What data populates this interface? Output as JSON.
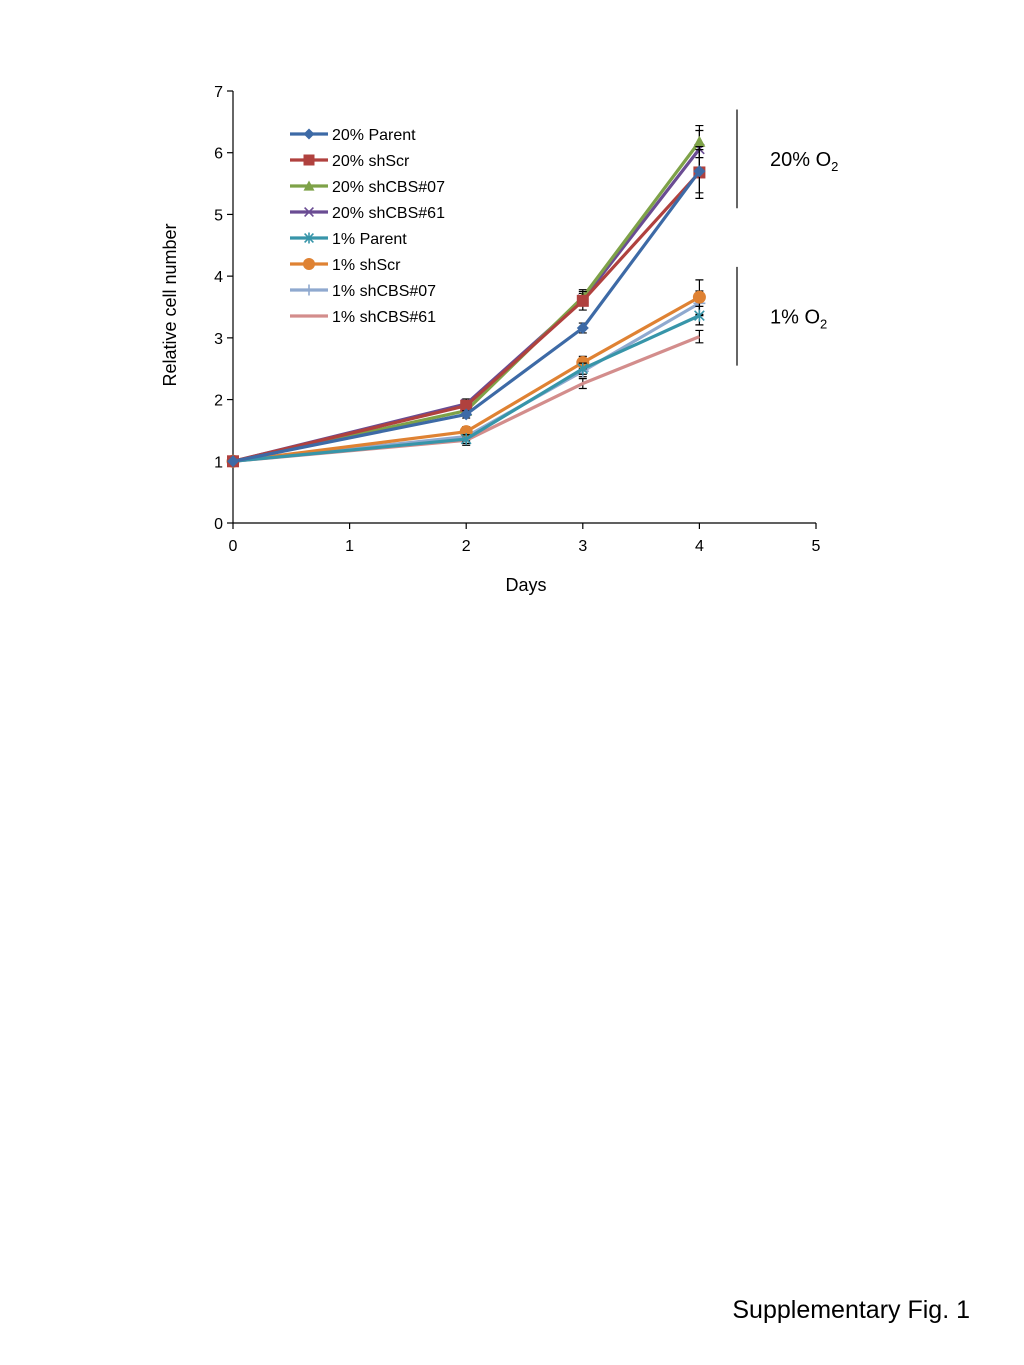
{
  "caption": "Supplementary Fig. 1",
  "chart_data": {
    "type": "line",
    "xlabel": "Days",
    "ylabel": "Relative cell number",
    "xlim": [
      0,
      5
    ],
    "ylim": [
      0,
      7
    ],
    "xticks": [
      0,
      1,
      2,
      3,
      4,
      5
    ],
    "yticks": [
      0,
      1,
      2,
      3,
      4,
      5,
      6,
      7
    ],
    "x": [
      0,
      2,
      3,
      4
    ],
    "grid": false,
    "legend_position": "top-left",
    "series": [
      {
        "name": "20% Parent",
        "color": "#3d6aa6",
        "marker": "diamond",
        "values": [
          1,
          1.76,
          3.16,
          5.7
        ],
        "errors": [
          0,
          0.06,
          0.08,
          0.35
        ]
      },
      {
        "name": "20% shScr",
        "color": "#b0413e",
        "marker": "square",
        "values": [
          1,
          1.9,
          3.6,
          5.68
        ],
        "errors": [
          0,
          0.07,
          0.15,
          0.42
        ]
      },
      {
        "name": "20% shCBS#07",
        "color": "#7ea248",
        "marker": "triangle",
        "values": [
          1,
          1.82,
          3.66,
          6.18
        ],
        "errors": [
          0,
          0.06,
          0.12,
          0.26
        ]
      },
      {
        "name": "20% shCBS#61",
        "color": "#6a4c93",
        "marker": "x",
        "values": [
          1,
          1.93,
          3.62,
          6.06
        ],
        "errors": [
          0,
          0.08,
          0.1,
          0.3
        ]
      },
      {
        "name": "1% Parent",
        "color": "#3795a9",
        "marker": "star",
        "values": [
          1,
          1.36,
          2.5,
          3.36
        ],
        "errors": [
          0,
          0.07,
          0.09,
          0.15
        ]
      },
      {
        "name": "1% shScr",
        "color": "#df8233",
        "marker": "circle",
        "values": [
          1,
          1.48,
          2.6,
          3.66
        ],
        "errors": [
          0,
          0.08,
          0.1,
          0.28
        ]
      },
      {
        "name": "1% shCBS#07",
        "color": "#8fa9cf",
        "marker": "plus",
        "values": [
          1,
          1.4,
          2.46,
          3.56
        ],
        "errors": [
          0,
          0.07,
          0.09,
          0.2
        ]
      },
      {
        "name": "1% shCBS#61",
        "color": "#d38d8c",
        "marker": "none",
        "values": [
          1,
          1.34,
          2.26,
          3.02
        ],
        "errors": [
          0,
          0.08,
          0.08,
          0.1
        ]
      }
    ],
    "annotations": [
      {
        "group": "20%",
        "label_main": "20% O",
        "label_sub": "2",
        "y_from": 5.1,
        "y_to": 6.7
      },
      {
        "group": "1%",
        "label_main": "1% O",
        "label_sub": "2",
        "y_from": 2.55,
        "y_to": 4.15
      }
    ]
  }
}
